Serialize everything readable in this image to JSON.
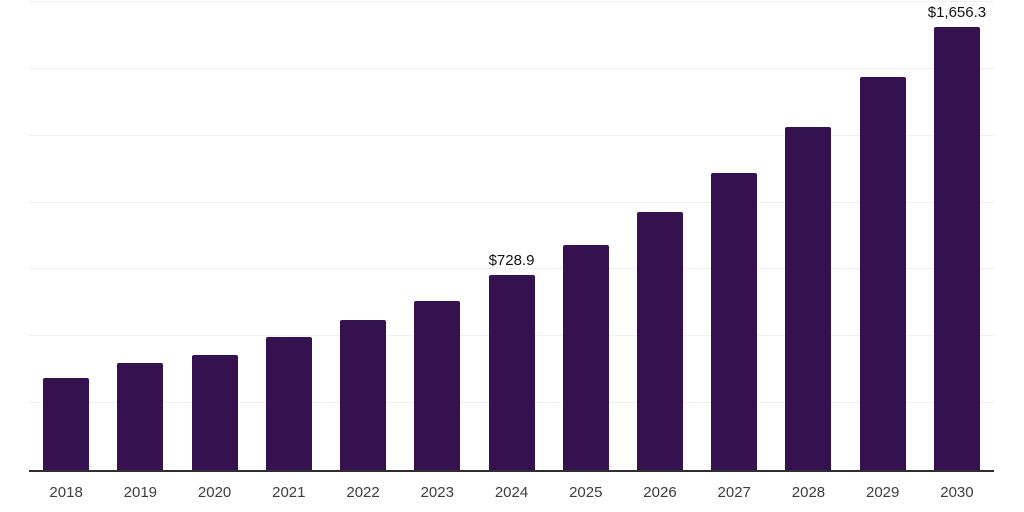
{
  "chart_data": {
    "type": "bar",
    "title": "",
    "xlabel": "",
    "ylabel": "",
    "categories": [
      "2018",
      "2019",
      "2020",
      "2021",
      "2022",
      "2023",
      "2024",
      "2025",
      "2026",
      "2027",
      "2028",
      "2029",
      "2030"
    ],
    "values": [
      345.0,
      399.0,
      429.0,
      499.0,
      560.0,
      633.0,
      728.9,
      840.0,
      965.0,
      1111.0,
      1282.0,
      1468.0,
      1656.3
    ],
    "value_labels": {
      "2024": "$728.9",
      "2030": "$1,656.3"
    },
    "ylim": [
      0,
      1750
    ],
    "gridline_step": 250,
    "grid": true,
    "legend": false,
    "bar_color": "#36114f",
    "axis_line_color": "#2e2e2e",
    "gridline_color": "#efefef",
    "tick_label_color": "#3d3d3d",
    "data_label_color": "#111111"
  }
}
